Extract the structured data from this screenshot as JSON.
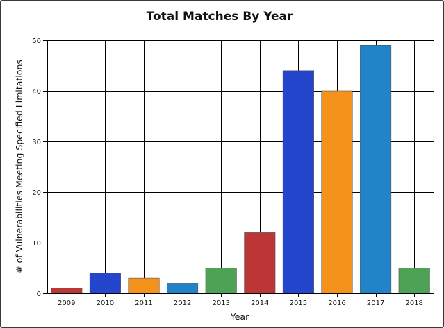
{
  "chart_data": {
    "type": "bar",
    "title": "Total Matches By Year",
    "xlabel": "Year",
    "ylabel": "# of Vulnerabilities Meeting Specified Limitations",
    "categories": [
      "2009",
      "2010",
      "2011",
      "2012",
      "2013",
      "2014",
      "2015",
      "2016",
      "2017",
      "2018"
    ],
    "values": [
      1,
      4,
      3,
      2,
      5,
      12,
      44,
      40,
      49,
      5
    ],
    "colors": [
      "#bd3636",
      "#2446cc",
      "#f5921c",
      "#2184c8",
      "#4ea255",
      "#bd3636",
      "#2446cc",
      "#f5921c",
      "#2184c8",
      "#4ea255"
    ],
    "ylim": [
      0,
      50
    ],
    "yticks": [
      0,
      10,
      20,
      30,
      40,
      50
    ],
    "grid": true,
    "legend": "none"
  }
}
